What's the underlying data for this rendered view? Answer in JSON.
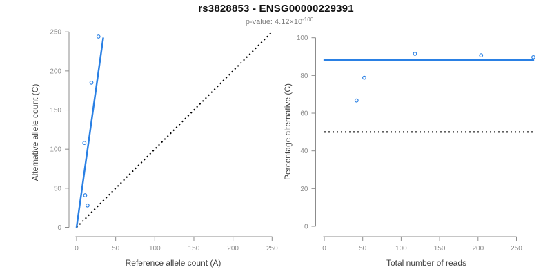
{
  "header": {
    "title": "rs3828853 - ENSG00000229391",
    "subtitle_prefix": "p-value: 4.12×10",
    "subtitle_exponent": "-100"
  },
  "colors": {
    "accent_blue": "#2a80e4",
    "axis_gray": "#8c8c8c",
    "tick_label_gray": "#8c8c8c",
    "axis_title_dark": "#3f3f3f",
    "dotted_black": "#000000"
  },
  "chart_data": [
    {
      "type": "scatter",
      "title": "",
      "xlabel": "Reference allele count (A)",
      "ylabel": "Alternative allele count (C)",
      "xlim": [
        0,
        250
      ],
      "ylim": [
        0,
        250
      ],
      "xticks": [
        0,
        50,
        100,
        150,
        200,
        250
      ],
      "yticks": [
        0,
        50,
        100,
        150,
        200,
        250
      ],
      "grid": false,
      "legend": "none",
      "points": [
        {
          "x": 14,
          "y": 28
        },
        {
          "x": 11,
          "y": 41
        },
        {
          "x": 10,
          "y": 108
        },
        {
          "x": 19,
          "y": 185
        },
        {
          "x": 28,
          "y": 244
        }
      ],
      "fit_line": {
        "x1": 0,
        "y1": 0,
        "x2": 34,
        "y2": 242,
        "style": "solid-blue"
      },
      "identity_line": {
        "x1": 0,
        "y1": 0,
        "x2": 250,
        "y2": 250,
        "style": "dotted-black"
      }
    },
    {
      "type": "scatter",
      "title": "",
      "xlabel": "Total number of reads",
      "ylabel": "Percentage alternative (C)",
      "xlim": [
        0,
        272
      ],
      "ylim": [
        0,
        100
      ],
      "xticks": [
        0,
        50,
        100,
        150,
        200,
        250
      ],
      "yticks": [
        0,
        20,
        40,
        60,
        80,
        100
      ],
      "grid": false,
      "legend": "none",
      "points": [
        {
          "x": 42,
          "y": 66.7
        },
        {
          "x": 52,
          "y": 78.8
        },
        {
          "x": 118,
          "y": 91.5
        },
        {
          "x": 204,
          "y": 90.7
        },
        {
          "x": 272,
          "y": 89.7
        }
      ],
      "mean_line": {
        "y": 88.2,
        "x1": 0,
        "x2": 272,
        "style": "solid-blue"
      },
      "reference_line": {
        "y": 50,
        "x1": 0,
        "x2": 272,
        "style": "dotted-black"
      }
    }
  ]
}
